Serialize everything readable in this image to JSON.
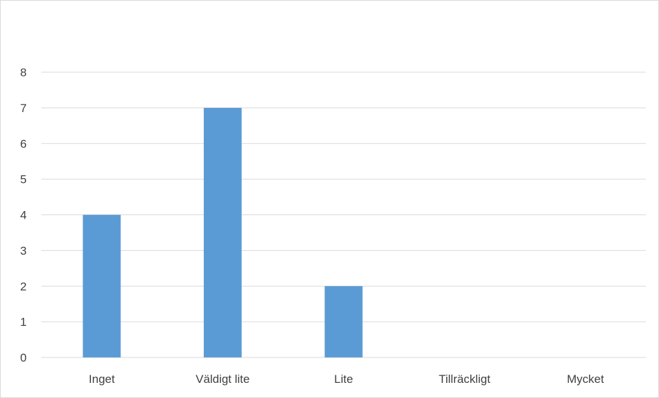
{
  "chart_data": {
    "type": "bar",
    "categories": [
      "Inget",
      "Väldigt lite",
      "Lite",
      "Tillräckligt",
      "Mycket"
    ],
    "series": [
      {
        "values": [
          4,
          7,
          2,
          0,
          0
        ],
        "color": "#5b9bd5"
      }
    ],
    "ylim": [
      0,
      8
    ],
    "yticks": [
      0,
      1,
      2,
      3,
      4,
      5,
      6,
      7,
      8
    ],
    "grid": true,
    "legend": "none",
    "colors": {
      "gridline": "#d9d9d9",
      "axis_text": "#404040",
      "border": "#d9d9d9"
    }
  }
}
